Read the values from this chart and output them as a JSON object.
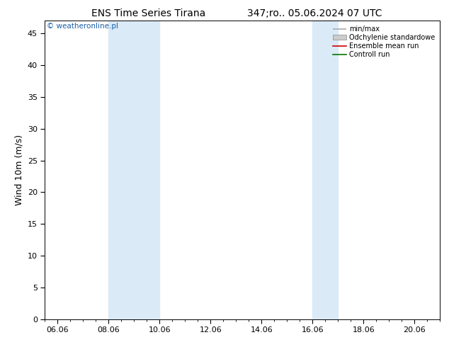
{
  "title_left": "ENS Time Series Tirana",
  "title_right": "347;ro.. 05.06.2024 07 UTC",
  "ylabel": "Wind 10m (m/s)",
  "watermark": "© weatheronline.pl",
  "ylim": [
    0,
    47
  ],
  "yticks": [
    0,
    5,
    10,
    15,
    20,
    25,
    30,
    35,
    40,
    45
  ],
  "xtick_labels": [
    "06.06",
    "08.06",
    "10.06",
    "12.06",
    "14.06",
    "16.06",
    "18.06",
    "20.06"
  ],
  "xtick_positions": [
    0,
    2,
    4,
    6,
    8,
    10,
    12,
    14
  ],
  "xlim_start": -0.5,
  "xlim_end": 14.5,
  "shaded_bands": [
    {
      "xstart": 2.0,
      "xend": 4.0
    },
    {
      "xstart": 10.0,
      "xend": 11.0
    }
  ],
  "shaded_color": "#daeaf7",
  "background_color": "#ffffff",
  "legend_items": [
    {
      "label": "min/max",
      "color": "#aaaaaa",
      "lw": 1.2
    },
    {
      "label": "Odchylenie standardowe",
      "color": "#cccccc",
      "lw": 5
    },
    {
      "label": "Ensemble mean run",
      "color": "#cc0000",
      "lw": 1.2
    },
    {
      "label": "Controll run",
      "color": "#007700",
      "lw": 1.2
    }
  ],
  "title_fontsize": 10,
  "axis_fontsize": 8,
  "legend_fontsize": 7,
  "watermark_fontsize": 7.5,
  "watermark_color": "#1a5fa8"
}
